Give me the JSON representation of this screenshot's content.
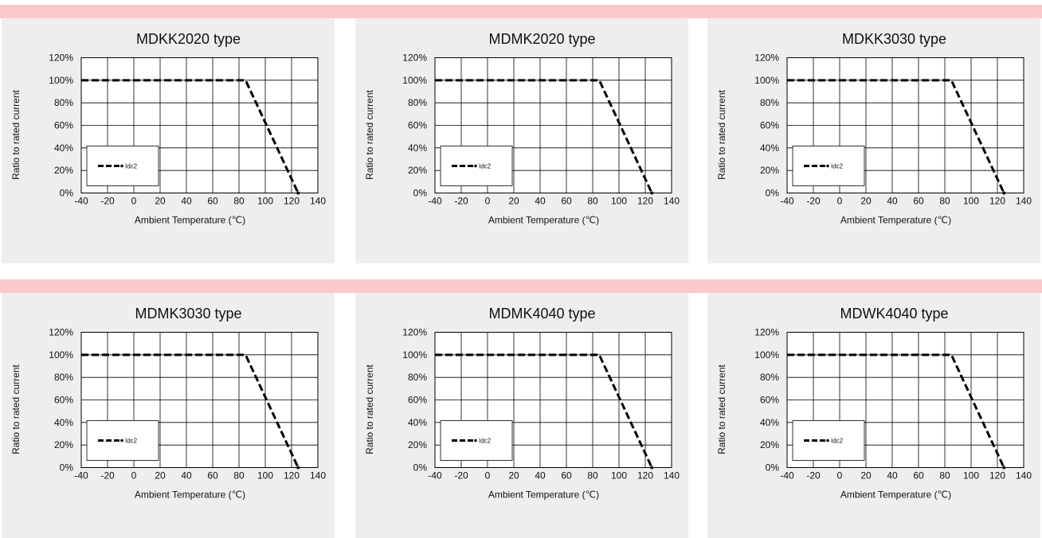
{
  "chart_data": [
    {
      "type": "line",
      "title": "MDKK2020 type",
      "xlabel": "Ambient Temperature (℃)",
      "ylabel": "Ratio to rated current",
      "xlim": [
        -40,
        140
      ],
      "ylim": [
        0,
        120
      ],
      "x_ticks": [
        "-40",
        "-20",
        "0",
        "20",
        "40",
        "60",
        "80",
        "100",
        "120",
        "140"
      ],
      "y_ticks": [
        "0%",
        "20%",
        "40%",
        "60%",
        "80%",
        "100%",
        "120%"
      ],
      "grid": true,
      "legend_position": "bottom-left",
      "series": [
        {
          "name": "Idc2",
          "x": [
            -40,
            85,
            125
          ],
          "y": [
            100,
            100,
            0
          ]
        }
      ]
    },
    {
      "type": "line",
      "title": "MDMK2020 type",
      "xlabel": "Ambient Temperature (℃)",
      "ylabel": "Ratio to rated current",
      "xlim": [
        -40,
        140
      ],
      "ylim": [
        0,
        120
      ],
      "x_ticks": [
        "-40",
        "-20",
        "0",
        "20",
        "40",
        "60",
        "80",
        "100",
        "120",
        "140"
      ],
      "y_ticks": [
        "0%",
        "20%",
        "40%",
        "60%",
        "80%",
        "100%",
        "120%"
      ],
      "grid": true,
      "legend_position": "bottom-left",
      "series": [
        {
          "name": "Idc2",
          "x": [
            -40,
            85,
            125
          ],
          "y": [
            100,
            100,
            0
          ]
        }
      ]
    },
    {
      "type": "line",
      "title": "MDKK3030 type",
      "xlabel": "Ambient Temperature (℃)",
      "ylabel": "Ratio to rated current",
      "xlim": [
        -40,
        140
      ],
      "ylim": [
        0,
        120
      ],
      "x_ticks": [
        "-40",
        "-20",
        "0",
        "20",
        "40",
        "60",
        "80",
        "100",
        "120",
        "140"
      ],
      "y_ticks": [
        "0%",
        "20%",
        "40%",
        "60%",
        "80%",
        "100%",
        "120%"
      ],
      "grid": true,
      "legend_position": "bottom-left",
      "series": [
        {
          "name": "Idc2",
          "x": [
            -40,
            85,
            125
          ],
          "y": [
            100,
            100,
            0
          ]
        }
      ]
    },
    {
      "type": "line",
      "title": "MDMK3030 type",
      "xlabel": "Ambient Temperature (℃)",
      "ylabel": "Ratio to rated current",
      "xlim": [
        -40,
        140
      ],
      "ylim": [
        0,
        120
      ],
      "x_ticks": [
        "-40",
        "-20",
        "0",
        "20",
        "40",
        "60",
        "80",
        "100",
        "120",
        "140"
      ],
      "y_ticks": [
        "0%",
        "20%",
        "40%",
        "60%",
        "80%",
        "100%",
        "120%"
      ],
      "grid": true,
      "legend_position": "bottom-left",
      "series": [
        {
          "name": "Idc2",
          "x": [
            -40,
            85,
            125
          ],
          "y": [
            100,
            100,
            0
          ]
        }
      ]
    },
    {
      "type": "line",
      "title": "MDMK4040 type",
      "xlabel": "Ambient Temperature (℃)",
      "ylabel": "Ratio to rated current",
      "xlim": [
        -40,
        140
      ],
      "ylim": [
        0,
        120
      ],
      "x_ticks": [
        "-40",
        "-20",
        "0",
        "20",
        "40",
        "60",
        "80",
        "100",
        "120",
        "140"
      ],
      "y_ticks": [
        "0%",
        "20%",
        "40%",
        "60%",
        "80%",
        "100%",
        "120%"
      ],
      "grid": true,
      "legend_position": "bottom-left",
      "series": [
        {
          "name": "Idc2",
          "x": [
            -40,
            85,
            125
          ],
          "y": [
            100,
            100,
            0
          ]
        }
      ]
    },
    {
      "type": "line",
      "title": "MDWK4040 type",
      "xlabel": "Ambient Temperature (℃)",
      "ylabel": "Ratio to rated current",
      "xlim": [
        -40,
        140
      ],
      "ylim": [
        0,
        120
      ],
      "x_ticks": [
        "-40",
        "-20",
        "0",
        "20",
        "40",
        "60",
        "80",
        "100",
        "120",
        "140"
      ],
      "y_ticks": [
        "0%",
        "20%",
        "40%",
        "60%",
        "80%",
        "100%",
        "120%"
      ],
      "grid": true,
      "legend_position": "bottom-left",
      "series": [
        {
          "name": "Idc2",
          "x": [
            -40,
            85,
            125
          ],
          "y": [
            100,
            100,
            0
          ]
        }
      ]
    }
  ],
  "colors": {
    "band": "#fbc9cc",
    "panel_bg": "#eceeef",
    "plot_bg": "#ffffff",
    "line": "#000000"
  }
}
